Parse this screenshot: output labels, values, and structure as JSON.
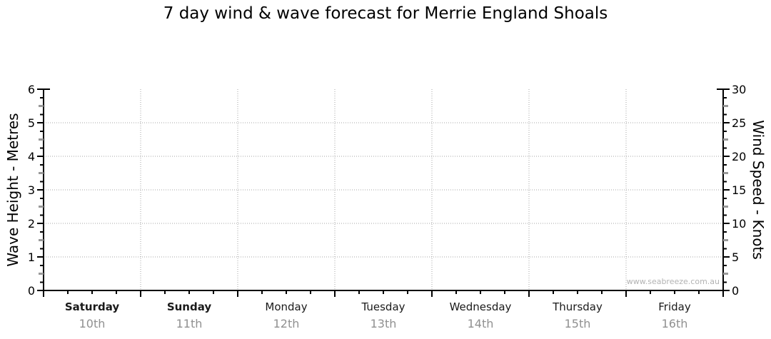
{
  "title": "7 day wind & wave forecast for Merrie England Shoals",
  "watermark": "www.seabreeze.com.au",
  "chart_data": {
    "type": "line",
    "title": "7 day wind & wave forecast for Merrie England Shoals",
    "series": [],
    "left_axis": {
      "label": "Wave Height - Metres",
      "min": 0,
      "max": 6,
      "major_step": 1,
      "tick_labels": [
        "0",
        "1",
        "2",
        "3",
        "4",
        "5",
        "6"
      ]
    },
    "right_axis": {
      "label": "Wind Speed - Knots",
      "min": 0,
      "max": 30,
      "major_step": 5,
      "tick_labels": [
        "0",
        "5",
        "10",
        "15",
        "20",
        "25",
        "30"
      ]
    },
    "x_axis": {
      "days": [
        {
          "name": "Saturday",
          "date": "10th",
          "weekend": true
        },
        {
          "name": "Sunday",
          "date": "11th",
          "weekend": true
        },
        {
          "name": "Monday",
          "date": "12th",
          "weekend": false
        },
        {
          "name": "Tuesday",
          "date": "13th",
          "weekend": false
        },
        {
          "name": "Wednesday",
          "date": "14th",
          "weekend": false
        },
        {
          "name": "Thursday",
          "date": "15th",
          "weekend": false
        },
        {
          "name": "Friday",
          "date": "16th",
          "weekend": false
        }
      ]
    },
    "grid": {
      "horizontal_at_wave_height": [
        1,
        2,
        3,
        4,
        5
      ],
      "vertical": "day-boundaries",
      "style": "dotted"
    },
    "legend": "none"
  },
  "colors": {
    "background": "#ffffff",
    "axis": "#000000",
    "grid": "#a6a6a6",
    "half_tick": "#999999",
    "day_text": "#1a1a1a",
    "date_text": "#909090",
    "watermark": "#b3b3b3"
  }
}
